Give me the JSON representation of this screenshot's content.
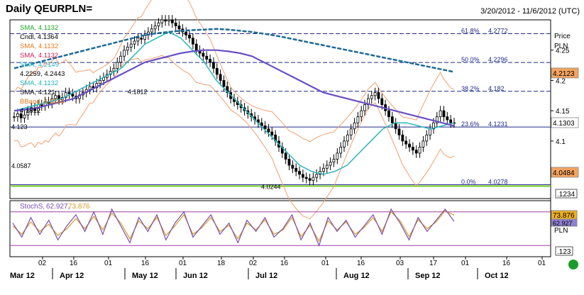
{
  "header": {
    "title": "Daily QEURPLN=",
    "date_range": "3/20/2012 - 11/6/2012 (UTC)"
  },
  "colors": {
    "background": "#ffffff",
    "frame": "#000000",
    "candle": "#000000",
    "sma_a": "#2ab6bb",
    "sma_b": "#6a4fc4",
    "sma_c": "#1f6a96",
    "bollinger": "#f0a070",
    "stoch_k": "#7a4fb0",
    "stoch_d": "#d89a2a",
    "fib_lines": "#1f2a8a",
    "green_line": "#7ccf2a",
    "label_green": "#1fa81f",
    "label_orange": "#e07a1a",
    "label_cyan": "#27b2c8"
  },
  "legend": [
    {
      "text": "SMA, 4.1132",
      "color": "#1fa81f"
    },
    {
      "text": "Cndl, 4.1364",
      "color": "#000000"
    },
    {
      "text": "SMA, 4.1132",
      "color": "#e07a1a"
    },
    {
      "text": "SMA, 4.1132",
      "color": "#cc2255"
    },
    {
      "text": "SMA, 4.2149",
      "color": "#27b2c8"
    },
    {
      "text": "4.2259, 4.2443",
      "color": "#000000"
    },
    {
      "text": "SMA, 4.1132",
      "color": "#27b2c8"
    },
    {
      "text": "SMA, 4.121",
      "color": "#000000"
    },
    {
      "text": "BBand, 4.1244",
      "color": "#e07a1a"
    },
    {
      "text": "4.1812",
      "color": "#000000"
    }
  ],
  "price_axis": {
    "title": "Price",
    "unit": "PLN",
    "ticks": [
      "4.25",
      "4.2",
      "4.15",
      "4.1"
    ]
  },
  "price_tags": [
    {
      "text": "4.2123",
      "value": 4.2123,
      "bg": "#f4a460"
    },
    {
      "text": "4.1303",
      "value": 4.1303,
      "bg": "#ffffff"
    },
    {
      "text": "4.0484",
      "value": 4.0484,
      "bg": "#f4a460"
    }
  ],
  "fib_levels": [
    {
      "label": "61.8%",
      "price_text": "4.2772",
      "value": 4.2772,
      "style": "dashed"
    },
    {
      "label": "50.0%",
      "price_text": "4.2296",
      "value": 4.2296,
      "style": "dashed"
    },
    {
      "label": "38.2%",
      "price_text": "4.182",
      "value": 4.182,
      "style": "dashed"
    },
    {
      "label": "23.6%",
      "price_text": "4.1231",
      "value": 4.1231,
      "style": "solid"
    },
    {
      "label": "0.0%",
      "price_text": "4.0278",
      "value": 4.0278,
      "style": "solid"
    }
  ],
  "level_annotations": [
    {
      "text": "4.1812",
      "value": 4.1812
    },
    {
      "text": "4.123",
      "value": 4.123
    },
    {
      "text": "4.0587",
      "value": 4.0587
    },
    {
      "text": "4.0244",
      "value": 4.0244
    }
  ],
  "stoch": {
    "label": "StochS,",
    "k_text": "62.927,",
    "d_text": "73.876",
    "tag_d": "73.876",
    "tag_k": "62.927",
    "unit": "PLN",
    "bottom_tag": ".123",
    "upper_band": 80,
    "lower_band": 20
  },
  "main_bottom_tag": ".1234",
  "x_axis": {
    "day_ticks": [
      "02",
      "16",
      "01",
      "16",
      "01",
      "18",
      "02",
      "16",
      "01",
      "16",
      "03",
      "17",
      "01",
      "16",
      "01"
    ],
    "months": [
      "Mar 12",
      "Apr 12",
      "May 12",
      "Jun 12",
      "Jul 12",
      "Aug 12",
      "Sep 12",
      "Oct 12"
    ]
  },
  "chart_data": {
    "type": "line",
    "title": "Daily QEURPLN=",
    "ylim": [
      4.005,
      4.3
    ],
    "ylabel": "PLN",
    "x_count": 160,
    "close_series": [
      4.14,
      4.145,
      4.138,
      4.143,
      4.15,
      4.155,
      4.15,
      4.16,
      4.158,
      4.165,
      4.162,
      4.17,
      4.175,
      4.168,
      4.172,
      4.18,
      4.178,
      4.174,
      4.17,
      4.176,
      4.18,
      4.185,
      4.19,
      4.188,
      4.195,
      4.2,
      4.205,
      4.21,
      4.215,
      4.22,
      4.23,
      4.24,
      4.25,
      4.255,
      4.26,
      4.265,
      4.27,
      4.268,
      4.275,
      4.28,
      4.285,
      4.29,
      4.295,
      4.3,
      4.298,
      4.3,
      4.295,
      4.29,
      4.285,
      4.28,
      4.275,
      4.27,
      4.26,
      4.25,
      4.245,
      4.24,
      4.235,
      4.23,
      4.22,
      4.21,
      4.2,
      4.19,
      4.18,
      4.17,
      4.165,
      4.16,
      4.155,
      4.15,
      4.145,
      4.14,
      4.135,
      4.13,
      4.125,
      4.12,
      4.115,
      4.11,
      4.1,
      4.09,
      4.08,
      4.07,
      4.06,
      4.055,
      4.05,
      4.045,
      4.04,
      4.038,
      4.035,
      4.04,
      4.045,
      4.05,
      4.055,
      4.06,
      4.065,
      4.07,
      4.08,
      4.09,
      4.1,
      4.11,
      4.12,
      4.13,
      4.14,
      4.15,
      4.16,
      4.17,
      4.175,
      4.18,
      4.17,
      4.16,
      4.15,
      4.14,
      4.13,
      4.12,
      4.11,
      4.1,
      4.095,
      4.09,
      4.085,
      4.08,
      4.09,
      4.1,
      4.11,
      4.12,
      4.13,
      4.14,
      4.15,
      4.14,
      4.135,
      4.13,
      4.1303
    ],
    "sma_a": [
      4.15,
      4.155,
      4.16,
      4.165,
      4.17,
      4.18,
      4.19,
      4.2,
      4.21,
      4.22,
      4.24,
      4.26,
      4.27,
      4.28,
      4.27,
      4.25,
      4.23,
      4.2,
      4.18,
      4.16,
      4.14,
      4.12,
      4.1,
      4.08,
      4.06,
      4.05,
      4.045,
      4.05,
      4.06,
      4.08,
      4.1,
      4.12,
      4.13,
      4.13,
      4.125,
      4.12,
      4.125,
      4.13
    ],
    "sma_b": [
      4.15,
      4.152,
      4.155,
      4.16,
      4.165,
      4.17,
      4.18,
      4.19,
      4.2,
      4.21,
      4.22,
      4.23,
      4.235,
      4.24,
      4.245,
      4.248,
      4.25,
      4.25,
      4.248,
      4.245,
      4.24,
      4.23,
      4.22,
      4.21,
      4.2,
      4.19,
      4.18,
      4.175,
      4.17,
      4.165,
      4.16,
      4.155,
      4.15,
      4.145,
      4.14,
      4.135,
      4.13,
      4.125
    ],
    "sma_c": [
      4.22,
      4.225,
      4.23,
      4.235,
      4.24,
      4.245,
      4.25,
      4.255,
      4.26,
      4.265,
      4.27,
      4.275,
      4.278,
      4.28,
      4.282,
      4.283,
      4.284,
      4.285,
      4.284,
      4.282,
      4.28,
      4.277,
      4.274,
      4.27,
      4.266,
      4.262,
      4.258,
      4.254,
      4.25,
      4.246,
      4.242,
      4.238,
      4.234,
      4.23,
      4.226,
      4.222,
      4.218,
      4.214
    ],
    "stoch_k": [
      60,
      35,
      70,
      40,
      65,
      30,
      55,
      75,
      45,
      80,
      40,
      85,
      55,
      25,
      70,
      45,
      75,
      30,
      60,
      80,
      35,
      55,
      75,
      40,
      60,
      25,
      65,
      45,
      70,
      35,
      50,
      75,
      30,
      60,
      20,
      70,
      45,
      65,
      35,
      55,
      75,
      40,
      85,
      60,
      30,
      70,
      45,
      65,
      85,
      62.927
    ],
    "stoch_d": [
      55,
      40,
      62,
      45,
      58,
      38,
      50,
      68,
      50,
      72,
      48,
      78,
      60,
      32,
      64,
      50,
      70,
      38,
      55,
      75,
      40,
      52,
      70,
      45,
      56,
      32,
      60,
      48,
      66,
      40,
      48,
      70,
      36,
      56,
      28,
      64,
      48,
      62,
      40,
      52,
      70,
      45,
      80,
      64,
      36,
      66,
      50,
      62,
      82,
      73.876
    ]
  }
}
